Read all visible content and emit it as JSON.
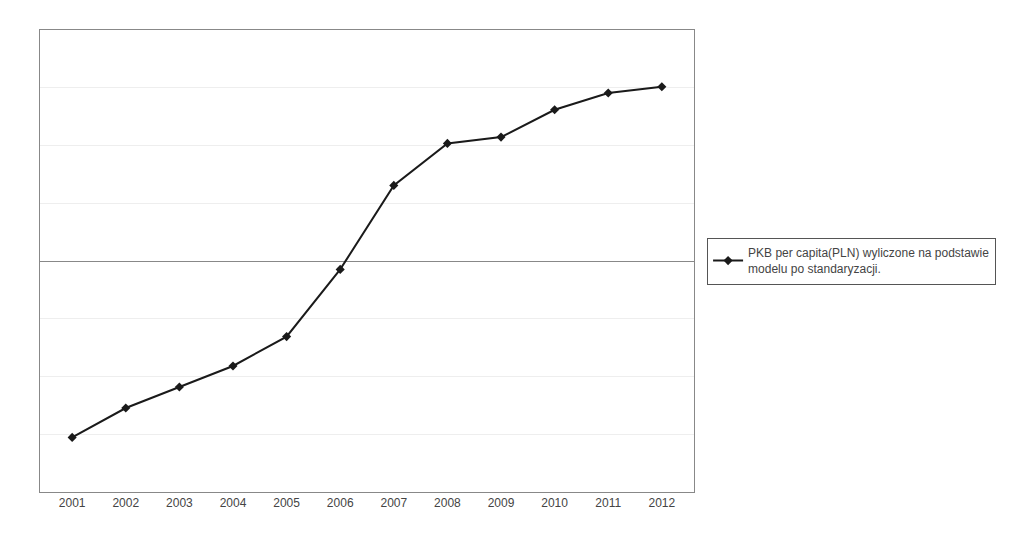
{
  "chart_data": {
    "type": "line",
    "x": [
      2001,
      2002,
      2003,
      2004,
      2005,
      2006,
      2007,
      2008,
      2009,
      2010,
      2011,
      2012
    ],
    "series": [
      {
        "name": "PKB per capita(PLN) wyliczone na podstawie\nmodelu po standaryzacji.",
        "color": "#1a1a1a",
        "marker": "diamond",
        "line_style": "solid",
        "values": [
          -4.2,
          -3.5,
          -3.0,
          -2.5,
          -1.8,
          -0.2,
          1.8,
          2.8,
          2.95,
          3.6,
          4.0,
          4.15
        ]
      }
    ],
    "xlim": [
      2000.4,
      2012.6
    ],
    "xticks": [
      2001,
      2002,
      2003,
      2004,
      2005,
      2006,
      2007,
      2008,
      2009,
      2010,
      2011,
      2012
    ],
    "ylim": [
      -5.5,
      5.5
    ],
    "yticks": [
      -5.5,
      -4.125,
      -2.75,
      -1.375,
      0,
      1.375,
      2.75,
      4.125,
      5.5
    ],
    "grid": true,
    "tick_labels": "x",
    "legend": "right"
  }
}
